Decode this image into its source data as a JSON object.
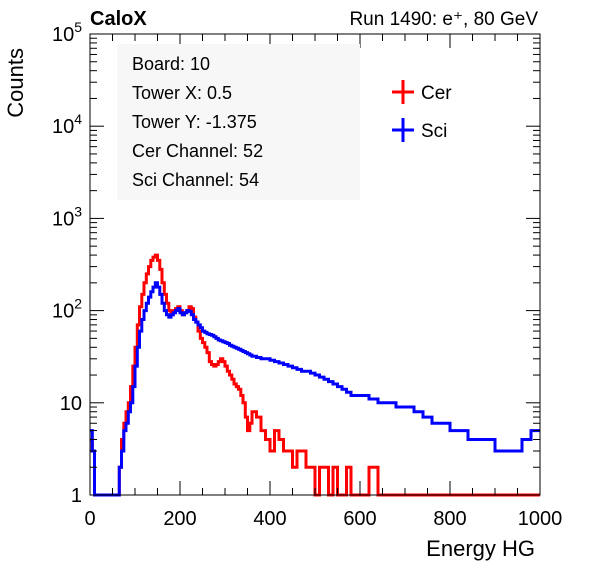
{
  "chart_data": {
    "type": "line",
    "title_left": "CaloX",
    "title_right": "Run 1490: e⁺, 80 GeV",
    "xlabel": "Energy HG",
    "ylabel": "Counts",
    "xlim": [
      0,
      1000
    ],
    "ylim": [
      1,
      100000
    ],
    "y_scale": "log",
    "grid": false,
    "legend_position": "top-right",
    "info_box": [
      "Board: 10",
      "Tower X: 0.5",
      "Tower Y: -1.375",
      "Cer Channel: 52",
      "Sci Channel: 54"
    ],
    "x_ticks": [
      {
        "value": 0,
        "label": "0"
      },
      {
        "value": 200,
        "label": "200"
      },
      {
        "value": 400,
        "label": "400"
      },
      {
        "value": 600,
        "label": "600"
      },
      {
        "value": 800,
        "label": "800"
      },
      {
        "value": 1000,
        "label": "1000"
      }
    ],
    "y_ticks": [
      {
        "value": 1,
        "base": "1",
        "exp": ""
      },
      {
        "value": 10,
        "base": "10",
        "exp": ""
      },
      {
        "value": 100,
        "base": "10",
        "exp": "2"
      },
      {
        "value": 1000,
        "base": "10",
        "exp": "3"
      },
      {
        "value": 10000,
        "base": "10",
        "exp": "4"
      },
      {
        "value": 100000,
        "base": "10",
        "exp": "5"
      }
    ],
    "series": [
      {
        "name": "Cer",
        "color": "#ff0000",
        "x": [
          0,
          5,
          10,
          20,
          30,
          40,
          50,
          60,
          65,
          70,
          75,
          80,
          85,
          90,
          95,
          100,
          105,
          110,
          115,
          120,
          125,
          130,
          135,
          140,
          145,
          150,
          155,
          160,
          165,
          170,
          175,
          180,
          185,
          190,
          195,
          200,
          205,
          210,
          215,
          220,
          225,
          230,
          235,
          240,
          245,
          250,
          255,
          260,
          265,
          270,
          275,
          280,
          285,
          290,
          295,
          300,
          305,
          310,
          315,
          320,
          325,
          330,
          335,
          340,
          345,
          350,
          355,
          360,
          370,
          380,
          390,
          400,
          410,
          420,
          430,
          440,
          450,
          460,
          470,
          480,
          490,
          500,
          510,
          520,
          530,
          540,
          550,
          560,
          570,
          580,
          600,
          620,
          640,
          660,
          680,
          700,
          720,
          740,
          760,
          780,
          800,
          820,
          840,
          860,
          880,
          900,
          920,
          940,
          960,
          980,
          1000
        ],
        "y": [
          4,
          3,
          1,
          1,
          1,
          1,
          1,
          1,
          2,
          4,
          6,
          8,
          10,
          15,
          25,
          40,
          70,
          110,
          150,
          200,
          250,
          300,
          350,
          380,
          400,
          350,
          280,
          200,
          150,
          120,
          100,
          90,
          100,
          105,
          110,
          100,
          90,
          95,
          100,
          110,
          105,
          85,
          75,
          60,
          50,
          45,
          40,
          35,
          28,
          26,
          25,
          26,
          28,
          30,
          28,
          25,
          22,
          20,
          18,
          16,
          15,
          14,
          12,
          10,
          7,
          5,
          6,
          8,
          7,
          5,
          4,
          3,
          5,
          4,
          3,
          3,
          2,
          3,
          3,
          2,
          2,
          1,
          2,
          2,
          1,
          2,
          1,
          1,
          2,
          1,
          1,
          2,
          1,
          1,
          1,
          1,
          1,
          1,
          1,
          1,
          1,
          1,
          1,
          1,
          1,
          1,
          1,
          1,
          1,
          1,
          1
        ]
      },
      {
        "name": "Sci",
        "color": "#0000ff",
        "x": [
          0,
          5,
          10,
          20,
          30,
          40,
          50,
          60,
          65,
          70,
          75,
          80,
          85,
          90,
          95,
          100,
          105,
          110,
          115,
          120,
          125,
          130,
          135,
          140,
          145,
          150,
          155,
          160,
          165,
          170,
          175,
          180,
          185,
          190,
          195,
          200,
          205,
          210,
          215,
          220,
          225,
          230,
          235,
          240,
          245,
          250,
          255,
          260,
          265,
          270,
          275,
          280,
          285,
          290,
          295,
          300,
          305,
          310,
          315,
          320,
          325,
          330,
          335,
          340,
          345,
          350,
          355,
          360,
          370,
          380,
          390,
          400,
          410,
          420,
          430,
          440,
          450,
          460,
          470,
          480,
          490,
          500,
          510,
          520,
          530,
          540,
          550,
          560,
          570,
          580,
          600,
          620,
          640,
          660,
          680,
          700,
          720,
          740,
          760,
          780,
          800,
          820,
          840,
          860,
          880,
          900,
          920,
          940,
          960,
          980,
          1000
        ],
        "y": [
          5,
          3,
          1,
          1,
          1,
          1,
          1,
          1,
          2,
          3,
          5,
          6,
          8,
          10,
          15,
          25,
          40,
          60,
          80,
          100,
          120,
          140,
          160,
          180,
          200,
          180,
          150,
          120,
          100,
          90,
          85,
          90,
          95,
          100,
          105,
          95,
          90,
          95,
          100,
          98,
          90,
          80,
          75,
          70,
          65,
          60,
          58,
          56,
          55,
          54,
          52,
          50,
          48,
          47,
          46,
          45,
          44,
          42,
          41,
          40,
          39,
          38,
          37,
          36,
          35,
          34,
          33,
          32,
          31,
          30,
          30,
          29,
          28,
          27,
          26,
          25,
          24,
          23,
          22,
          22,
          21,
          20,
          19,
          18,
          17,
          16,
          15,
          14,
          13,
          12,
          12,
          11,
          10,
          10,
          9,
          9,
          8,
          7,
          6,
          6,
          5,
          5,
          4,
          4,
          4,
          3,
          3,
          3,
          4,
          5,
          5
        ]
      }
    ]
  }
}
